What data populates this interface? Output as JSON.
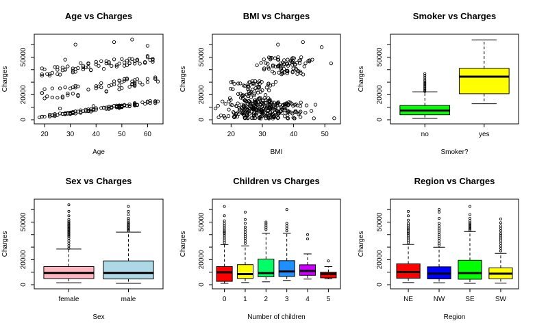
{
  "chart_data": [
    {
      "id": "age",
      "type": "scatter",
      "title": "Age vs Charges",
      "xlabel": "Age",
      "ylabel": "Charges",
      "xlim": [
        16,
        66
      ],
      "ylim": [
        0,
        65000
      ],
      "xticks": [
        20,
        30,
        40,
        50,
        60
      ],
      "yticks": [
        0,
        20000,
        50000
      ],
      "ytick_labels": [
        "0",
        "20000",
        "50000"
      ],
      "bands": [
        {
          "name": "low",
          "x": [
            18,
            64
          ],
          "y_start": [
            1200,
            3000
          ],
          "y_end": [
            13500,
            16000
          ],
          "count": 110
        },
        {
          "name": "mid",
          "x": [
            18,
            64
          ],
          "y_start": [
            15000,
            24000
          ],
          "y_end": [
            27000,
            36000
          ],
          "count": 60
        },
        {
          "name": "high",
          "x": [
            18,
            64
          ],
          "y_start": [
            34000,
            42000
          ],
          "y_end": [
            46000,
            52000
          ],
          "count": 70
        }
      ],
      "outliers": [
        [
          32,
          60000
        ],
        [
          47,
          62000
        ],
        [
          54,
          64000
        ],
        [
          60,
          59000
        ],
        [
          28,
          48000
        ],
        [
          44,
          45000
        ],
        [
          39,
          11000
        ],
        [
          52,
          33000
        ],
        [
          26,
          9000
        ],
        [
          58,
          28000
        ]
      ]
    },
    {
      "id": "bmi",
      "type": "scatter",
      "title": "BMI vs Charges",
      "xlabel": "BMI",
      "ylabel": "Charges",
      "xlim": [
        14,
        55
      ],
      "ylim": [
        0,
        65000
      ],
      "xticks": [
        20,
        30,
        40,
        50
      ],
      "yticks": [
        0,
        20000,
        50000
      ],
      "ytick_labels": [
        "0",
        "20000",
        "50000"
      ],
      "clusters": [
        {
          "name": "base",
          "x_center": 30.5,
          "x_sd": 5.8,
          "y_min": 1000,
          "y_max": 15000,
          "count": 260
        },
        {
          "name": "upper-left",
          "x_center": 27,
          "x_sd": 3.5,
          "y_min": 15000,
          "y_max": 31000,
          "count": 80
        },
        {
          "name": "upper-right",
          "x_center": 37.5,
          "x_sd": 3.8,
          "y_min": 36000,
          "y_max": 50000,
          "count": 80
        }
      ],
      "outliers": [
        [
          53,
          1200
        ],
        [
          49,
          58000
        ],
        [
          52,
          45000
        ],
        [
          47,
          12000
        ],
        [
          16,
          2000
        ],
        [
          18,
          1600
        ],
        [
          43,
          62000
        ],
        [
          20,
          30000
        ],
        [
          46,
          48000
        ],
        [
          35,
          60000
        ]
      ]
    },
    {
      "id": "smoker",
      "type": "boxplot",
      "title": "Smoker vs Charges",
      "xlabel": "Smoker?",
      "ylabel": "Charges",
      "ylim": [
        0,
        65000
      ],
      "yticks": [
        0,
        20000,
        50000
      ],
      "ytick_labels": [
        "0",
        "20000",
        "50000"
      ],
      "categories": [
        "no",
        "yes"
      ],
      "boxes": [
        {
          "min": 1100,
          "q1": 4000,
          "median": 7400,
          "q3": 11400,
          "max": 22300,
          "color": "#00FF00",
          "outliers": [
            22500,
            23400,
            24300,
            25200,
            26100,
            27000,
            28000,
            29000,
            30000,
            31200,
            32500,
            34000,
            35500,
            36900
          ]
        },
        {
          "min": 12800,
          "q1": 20800,
          "median": 34400,
          "q3": 41000,
          "max": 63800,
          "color": "#FFFF00",
          "outliers": []
        }
      ]
    },
    {
      "id": "sex",
      "type": "boxplot",
      "title": "Sex vs Charges",
      "xlabel": "Sex",
      "ylabel": "Charges",
      "ylim": [
        0,
        65000
      ],
      "yticks": [
        0,
        20000,
        50000
      ],
      "ytick_labels": [
        "0",
        "20000",
        "50000"
      ],
      "categories": [
        "female",
        "male"
      ],
      "boxes": [
        {
          "min": 1600,
          "q1": 4900,
          "median": 9400,
          "q3": 14500,
          "max": 28500,
          "color": "#FFB6C1",
          "outliers": [
            29000,
            31000,
            33000,
            35000,
            37000,
            38500,
            39500,
            40500,
            41500,
            42500,
            43500,
            44500,
            45500,
            46500,
            47500,
            48500,
            49500,
            50500,
            52000,
            55000,
            58500,
            63800
          ]
        },
        {
          "min": 1100,
          "q1": 4600,
          "median": 9400,
          "q3": 19000,
          "max": 42000,
          "color": "#ADD8E6",
          "outliers": [
            43000,
            44000,
            45000,
            46000,
            47000,
            48000,
            49000,
            50000,
            51500,
            53000,
            56000,
            58500,
            62500
          ]
        }
      ]
    },
    {
      "id": "children",
      "type": "boxplot",
      "title": "Children vs Charges",
      "xlabel": "Number of children",
      "ylabel": "Charges",
      "ylim": [
        0,
        65000
      ],
      "yticks": [
        0,
        20000,
        50000
      ],
      "ytick_labels": [
        "0",
        "20000",
        "50000"
      ],
      "categories": [
        "0",
        "1",
        "2",
        "3",
        "4",
        "5"
      ],
      "boxes": [
        {
          "min": 1100,
          "q1": 2700,
          "median": 9900,
          "q3": 14500,
          "max": 32000,
          "color": "#FF0000",
          "outliers": [
            33500,
            35000,
            36500,
            38000,
            39500,
            41000,
            42000,
            43000,
            44500,
            46000,
            47500,
            49000,
            51000,
            55000,
            62500
          ]
        },
        {
          "min": 1700,
          "q1": 5000,
          "median": 8500,
          "q3": 16000,
          "max": 31000,
          "color": "#FFFF00",
          "outliers": [
            33000,
            35000,
            37000,
            38500,
            40000,
            42000,
            44000,
            46000,
            49000,
            52000,
            58000
          ]
        },
        {
          "min": 2300,
          "q1": 6300,
          "median": 9300,
          "q3": 20500,
          "max": 41000,
          "color": "#00FF66",
          "outliers": [
            44000,
            45500,
            47000,
            48500,
            50000
          ]
        },
        {
          "min": 3400,
          "q1": 6600,
          "median": 10600,
          "q3": 19200,
          "max": 41000,
          "color": "#1E90FF",
          "outliers": [
            43000,
            45000,
            47000,
            49000,
            60000
          ]
        },
        {
          "min": 4500,
          "q1": 7500,
          "median": 11000,
          "q3": 15900,
          "max": 24600,
          "color": "#CC00FF",
          "outliers": [
            36500,
            40000
          ]
        },
        {
          "min": 4700,
          "q1": 5500,
          "median": 8600,
          "q3": 10000,
          "max": 14500,
          "color": "#FF0000",
          "outliers": [
            19000
          ]
        }
      ]
    },
    {
      "id": "region",
      "type": "boxplot",
      "title": "Region vs Charges",
      "xlabel": "Region",
      "ylabel": "Charges",
      "ylim": [
        0,
        65000
      ],
      "yticks": [
        0,
        20000,
        50000
      ],
      "ytick_labels": [
        "0",
        "20000",
        "50000"
      ],
      "categories": [
        "NE",
        "NW",
        "SE",
        "SW"
      ],
      "boxes": [
        {
          "min": 1700,
          "q1": 5200,
          "median": 10100,
          "q3": 16700,
          "max": 32100,
          "color": "#FF0000",
          "outliers": [
            33500,
            35000,
            36500,
            38000,
            39500,
            41000,
            42000,
            43500,
            44500,
            46000,
            47500,
            49000,
            51500,
            55000,
            58500
          ]
        },
        {
          "min": 1600,
          "q1": 4700,
          "median": 8900,
          "q3": 14300,
          "max": 29900,
          "color": "#0000FF",
          "outliers": [
            31500,
            33000,
            35000,
            37000,
            38500,
            40000,
            42000,
            43500,
            45000,
            47000,
            49000,
            53000,
            58000,
            60000
          ]
        },
        {
          "min": 1100,
          "q1": 4400,
          "median": 9300,
          "q3": 19500,
          "max": 42500,
          "color": "#00FF00",
          "outliers": [
            43500,
            44500,
            45500,
            46500,
            47500,
            48500,
            49500,
            51000,
            53000,
            56000,
            62500
          ]
        },
        {
          "min": 1200,
          "q1": 4700,
          "median": 8800,
          "q3": 13500,
          "max": 25000,
          "color": "#FFFF00",
          "outliers": [
            27000,
            29000,
            31000,
            33000,
            35000,
            36500,
            38000,
            39500,
            41000,
            43000,
            45000,
            47000,
            49500,
            52500
          ]
        }
      ]
    }
  ]
}
